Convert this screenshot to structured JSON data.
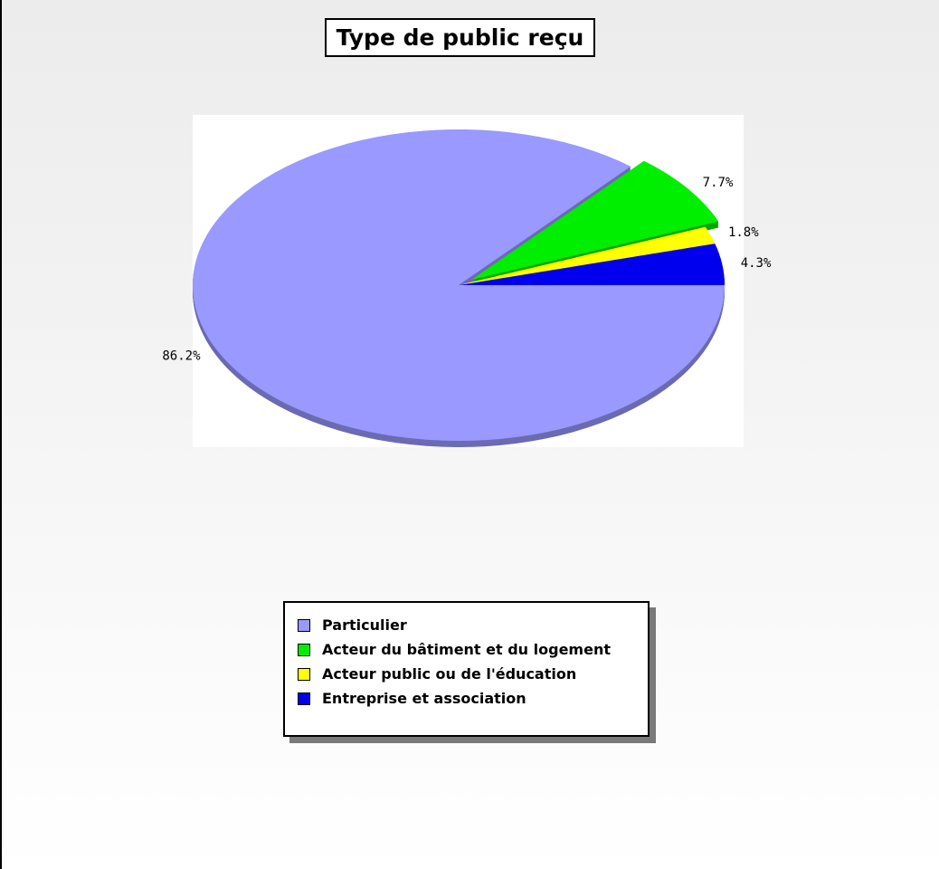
{
  "chart_data": {
    "type": "pie",
    "title": "Type de public reçu",
    "slices": [
      {
        "label": "Particulier",
        "value": 86.2,
        "value_label": "86.2%",
        "color": "#9999FF"
      },
      {
        "label": "Acteur du bâtiment et du logement",
        "value": 7.7,
        "value_label": "7.7%",
        "color": "#00EE00",
        "exploded": true
      },
      {
        "label": "Acteur public ou de l'éducation",
        "value": 1.8,
        "value_label": "1.8%",
        "color": "#FFFF00"
      },
      {
        "label": "Entreprise et association",
        "value": 4.3,
        "value_label": "4.3%",
        "color": "#0000EE"
      }
    ],
    "legend_position": "bottom",
    "style": "3d"
  }
}
